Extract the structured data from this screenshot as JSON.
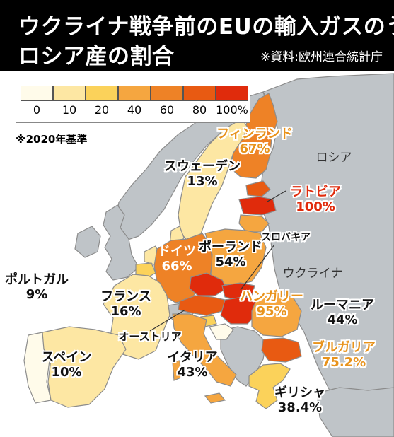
{
  "header": {
    "title_line1": "ウクライナ戦争前のEUの輸入ガスのうち",
    "title_line2": "ロシア産の割合",
    "source": "※資料:欧州連合統計庁"
  },
  "legend": {
    "bins": [
      {
        "label": "0",
        "color": "#fffbea"
      },
      {
        "label": "10",
        "color": "#fde7a3"
      },
      {
        "label": "20",
        "color": "#fbd25a"
      },
      {
        "label": "40",
        "color": "#f5a640"
      },
      {
        "label": "60",
        "color": "#ee8226"
      },
      {
        "label": "80",
        "color": "#e85a12"
      },
      {
        "label": "100%",
        "color": "#e02b0c"
      }
    ]
  },
  "basis_note": "※2020年基準",
  "map_labels": {
    "russia": "ロシア",
    "ukraine": "ウクライナ"
  },
  "countries": [
    {
      "id": "finland",
      "name": "フィンランド",
      "pct": "67%",
      "value": 67,
      "color": "#ee8226",
      "label_color": "#e8931c"
    },
    {
      "id": "sweden",
      "name": "スウェーデン",
      "pct": "13%",
      "value": 13,
      "color": "#fde7a3",
      "label_color": "#111111"
    },
    {
      "id": "latvia",
      "name": "ラトビア",
      "pct": "100%",
      "value": 100,
      "color": "#e02b0c",
      "label_color": "#e02b0c"
    },
    {
      "id": "germany",
      "name": "ドイツ",
      "pct": "66%",
      "value": 66,
      "color": "#ee8226",
      "label_color": "#ffffff"
    },
    {
      "id": "poland",
      "name": "ポーランド",
      "pct": "54%",
      "value": 54,
      "color": "#f5a640",
      "label_color": "#111111"
    },
    {
      "id": "slovakia",
      "name": "スロバキア",
      "pct": "",
      "value": 100,
      "color": "#e02b0c",
      "label_color": "#111111"
    },
    {
      "id": "portugal",
      "name": "ポルトガル",
      "pct": "9%",
      "value": 9,
      "color": "#fffbea",
      "label_color": "#111111"
    },
    {
      "id": "france",
      "name": "フランス",
      "pct": "16%",
      "value": 16,
      "color": "#fde7a3",
      "label_color": "#111111"
    },
    {
      "id": "hungary",
      "name": "ハンガリー",
      "pct": "95%",
      "value": 95,
      "color": "#e02b0c",
      "label_color": "#e8931c"
    },
    {
      "id": "romania",
      "name": "ルーマニア",
      "pct": "44%",
      "value": 44,
      "color": "#f5a640",
      "label_color": "#111111"
    },
    {
      "id": "austria",
      "name": "オーストリア",
      "pct": "",
      "value": 80,
      "color": "#e85a12",
      "label_color": "#111111"
    },
    {
      "id": "spain",
      "name": "スペイン",
      "pct": "10%",
      "value": 10,
      "color": "#fde7a3",
      "label_color": "#111111"
    },
    {
      "id": "italy",
      "name": "イタリア",
      "pct": "43%",
      "value": 43,
      "color": "#f5a640",
      "label_color": "#111111"
    },
    {
      "id": "bulgaria",
      "name": "ブルガリア",
      "pct": "75.2%",
      "value": 75.2,
      "color": "#e85a12",
      "label_color": "#e8931c"
    },
    {
      "id": "greece",
      "name": "ギリシャ",
      "pct": "38.4%",
      "value": 38.4,
      "color": "#fbd25a",
      "label_color": "#111111"
    }
  ],
  "colors": {
    "sea": "#ffffff",
    "non_eu": "#bfc4c8",
    "border": "#8c8c8c",
    "header_bg": "#000000"
  }
}
